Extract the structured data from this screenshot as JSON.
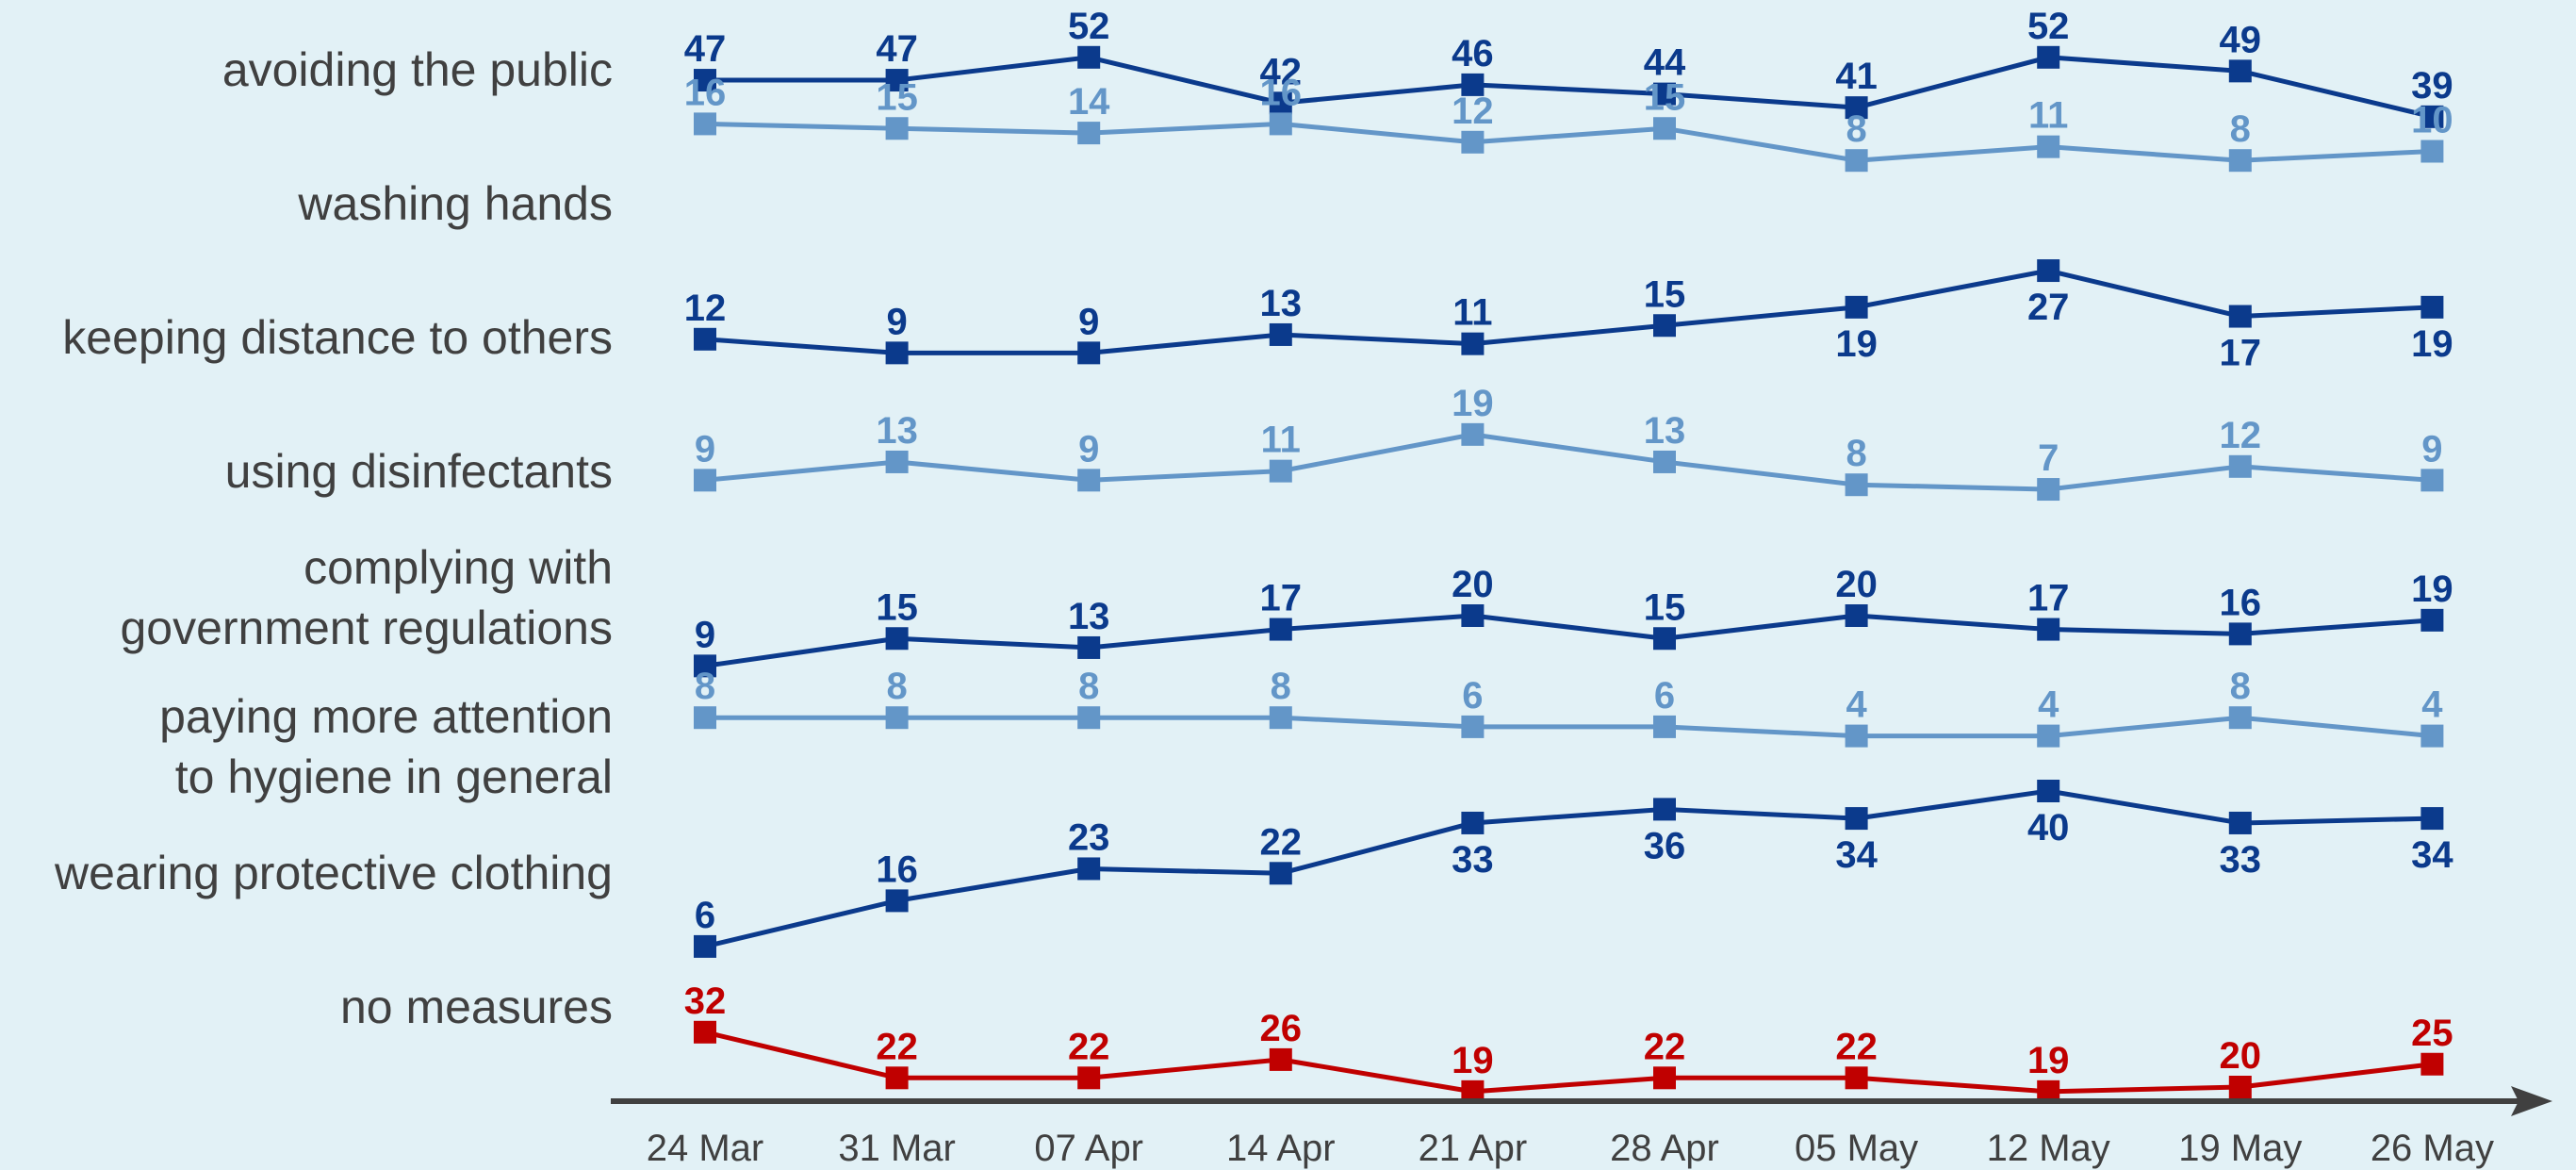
{
  "chart_data": {
    "type": "line",
    "categories": [
      "24 Mar",
      "31 Mar",
      "07 Apr",
      "14 Apr",
      "21 Apr",
      "28 Apr",
      "05 May",
      "12 May",
      "19 May",
      "26 May"
    ],
    "series": [
      {
        "name": "avoiding the public",
        "label_lines": [
          "avoiding the public"
        ],
        "color": "#0b3a8c",
        "values": [
          47,
          47,
          52,
          42,
          46,
          44,
          41,
          52,
          49,
          39
        ],
        "label_positions": [
          "above",
          "above",
          "above",
          "above",
          "above",
          "above",
          "above",
          "above",
          "above",
          "above"
        ]
      },
      {
        "name": "washing hands",
        "label_lines": [
          "washing hands"
        ],
        "color": "#6396c8",
        "values": [
          16,
          15,
          14,
          16,
          12,
          15,
          8,
          11,
          8,
          10
        ],
        "label_positions": [
          "above",
          "above",
          "above",
          "above",
          "above",
          "above",
          "above",
          "above",
          "above",
          "above"
        ]
      },
      {
        "name": "keeping distance to others",
        "label_lines": [
          "keeping distance to others"
        ],
        "color": "#0b3a8c",
        "values": [
          12,
          9,
          9,
          13,
          11,
          15,
          19,
          27,
          17,
          19
        ],
        "label_positions": [
          "above",
          "above",
          "above",
          "above",
          "above",
          "above",
          "below",
          "below",
          "below",
          "below"
        ]
      },
      {
        "name": "using disinfectants",
        "label_lines": [
          "using disinfectants"
        ],
        "color": "#6396c8",
        "values": [
          9,
          13,
          9,
          11,
          19,
          13,
          8,
          7,
          12,
          9
        ],
        "label_positions": [
          "above",
          "above",
          "above",
          "above",
          "above",
          "above",
          "above",
          "above",
          "above",
          "above"
        ]
      },
      {
        "name": "complying with government regulations",
        "label_lines": [
          "complying with",
          "government regulations"
        ],
        "color": "#0b3a8c",
        "values": [
          9,
          15,
          13,
          17,
          20,
          15,
          20,
          17,
          16,
          19
        ],
        "label_positions": [
          "above",
          "above",
          "above",
          "above",
          "above",
          "above",
          "above",
          "above",
          "above",
          "above"
        ]
      },
      {
        "name": "paying more attention to hygiene in general",
        "label_lines": [
          "paying more attention",
          "to hygiene in general"
        ],
        "color": "#6396c8",
        "values": [
          8,
          8,
          8,
          8,
          6,
          6,
          4,
          4,
          8,
          4
        ],
        "label_positions": [
          "above",
          "above",
          "above",
          "above",
          "above",
          "above",
          "above",
          "above",
          "above",
          "above"
        ]
      },
      {
        "name": "wearing protective clothing",
        "label_lines": [
          "wearing protective clothing"
        ],
        "color": "#0b3a8c",
        "values": [
          6,
          16,
          23,
          22,
          33,
          36,
          34,
          40,
          33,
          34
        ],
        "label_positions": [
          "above",
          "above",
          "above",
          "above",
          "below",
          "below",
          "below",
          "below",
          "below",
          "below"
        ]
      },
      {
        "name": "no measures",
        "label_lines": [
          "no measures"
        ],
        "color": "#c00000",
        "values": [
          32,
          22,
          22,
          26,
          19,
          22,
          22,
          19,
          20,
          25
        ],
        "label_positions": [
          "above",
          "above",
          "above",
          "above",
          "above",
          "above",
          "above",
          "above",
          "above",
          "above"
        ]
      }
    ],
    "title": "",
    "xlabel": "",
    "ylabel": "",
    "grid": false,
    "legend": "row labels on the left",
    "axis_color": "#404040"
  }
}
